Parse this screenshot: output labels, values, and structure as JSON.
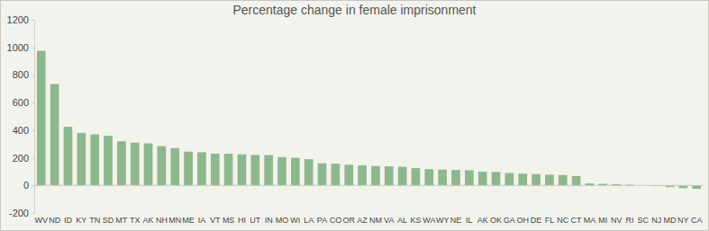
{
  "chart_data": {
    "type": "bar",
    "title": "Percentage change in female imprisonment",
    "categories": [
      "WV",
      "ND",
      "ID",
      "KY",
      "TN",
      "SD",
      "MT",
      "TX",
      "AK",
      "NH",
      "MN",
      "ME",
      "IA",
      "VT",
      "MS",
      "HI",
      "UT",
      "IN",
      "MO",
      "WI",
      "LA",
      "PA",
      "CO",
      "OR",
      "AZ",
      "NM",
      "VA",
      "AL",
      "KS",
      "WA",
      "WY",
      "NE",
      "IL",
      "AK",
      "OK",
      "GA",
      "OH",
      "DE",
      "FL",
      "NC",
      "CT",
      "MA",
      "MI",
      "NV",
      "RI",
      "SC",
      "NJ",
      "MD",
      "NY",
      "CA"
    ],
    "values": [
      975,
      735,
      425,
      380,
      370,
      360,
      320,
      310,
      305,
      285,
      270,
      245,
      240,
      230,
      230,
      225,
      220,
      220,
      205,
      200,
      190,
      160,
      158,
      150,
      145,
      140,
      138,
      135,
      125,
      118,
      115,
      112,
      110,
      100,
      98,
      90,
      85,
      82,
      78,
      75,
      68,
      15,
      12,
      10,
      5,
      0,
      -5,
      -12,
      -20,
      -25
    ],
    "color": "#8db88d",
    "ylim": [
      -200,
      1200
    ],
    "yticks": [
      -200,
      0,
      200,
      400,
      600,
      800,
      1000,
      1200
    ],
    "grid": false
  }
}
